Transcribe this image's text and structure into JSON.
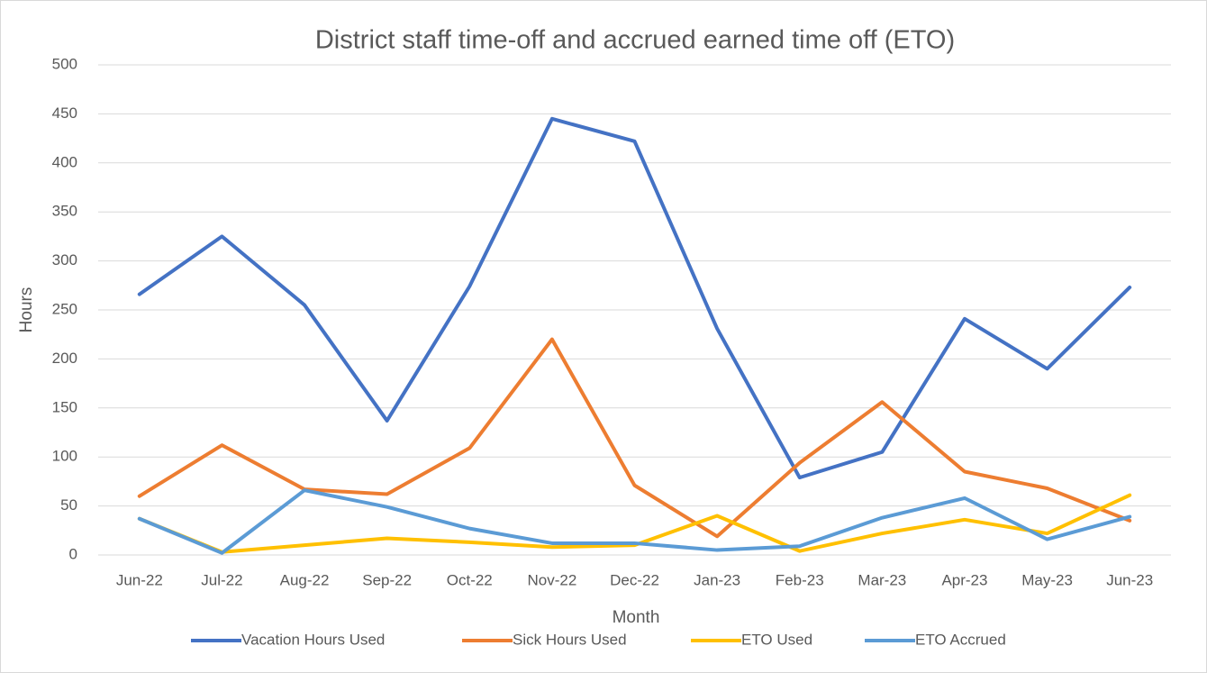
{
  "chart_data": {
    "type": "line",
    "title": "District staff time-off and accrued earned time off (ETO)",
    "x_label": "Month",
    "y_label": "Hours",
    "categories": [
      "Jun-22",
      "Jul-22",
      "Aug-22",
      "Sep-22",
      "Oct-22",
      "Nov-22",
      "Dec-22",
      "Jan-23",
      "Feb-23",
      "Mar-23",
      "Apr-23",
      "May-23",
      "Jun-23"
    ],
    "series": [
      {
        "name": "Vacation Hours Used",
        "color": "#4472c4",
        "values": [
          266,
          325,
          255,
          137,
          274,
          445,
          422,
          231,
          79,
          105,
          241,
          190,
          273
        ]
      },
      {
        "name": "Sick Hours Used",
        "color": "#ed7d31",
        "values": [
          60,
          112,
          67,
          62,
          109,
          220,
          71,
          19,
          94,
          156,
          85,
          68,
          35
        ]
      },
      {
        "name": "ETO Used",
        "color": "#ffc000",
        "values": [
          37,
          3,
          10,
          17,
          13,
          8,
          10,
          40,
          4,
          22,
          36,
          22,
          61
        ]
      },
      {
        "name": "ETO Accrued",
        "color": "#5b9bd5",
        "values": [
          37,
          2,
          66,
          49,
          27,
          12,
          12,
          5,
          9,
          38,
          58,
          16,
          39
        ]
      }
    ],
    "ylim": [
      0,
      500
    ],
    "yticks": [
      0,
      50,
      100,
      150,
      200,
      250,
      300,
      350,
      400,
      450,
      500
    ],
    "grid": true,
    "legend": "bottom"
  }
}
